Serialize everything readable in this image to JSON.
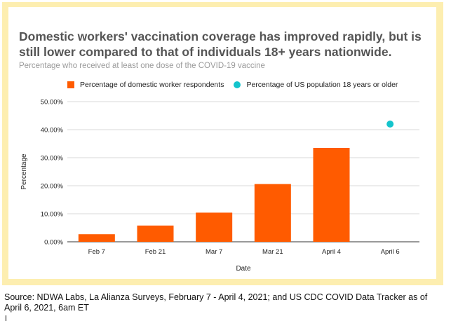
{
  "chart_data": {
    "type": "bar",
    "title": "Domestic workers' vaccination coverage has improved rapidly, but is still lower compared to that of individuals 18+ years nationwide.",
    "subtitle": "Percentage who received at least one dose of the COVID-19 vaccine",
    "xlabel": "Date",
    "ylabel": "Percentage",
    "ylim": [
      0,
      50
    ],
    "yticks": [
      "0.00%",
      "10.00%",
      "20.00%",
      "30.00%",
      "40.00%",
      "50.00%"
    ],
    "grid": true,
    "legend_position": "top",
    "categories": [
      "Feb 7",
      "Feb 21",
      "Mar 7",
      "Mar 21",
      "April 4",
      "April 6"
    ],
    "series": [
      {
        "name": "Percentage of domestic worker respondents",
        "type": "bar",
        "color": "#ff5b00",
        "values": [
          2.7,
          5.8,
          10.4,
          20.6,
          33.5,
          null
        ]
      },
      {
        "name": "Percentage of US population 18 years or older",
        "type": "scatter",
        "color": "#14c4cc",
        "values": [
          null,
          null,
          null,
          null,
          null,
          42.0
        ]
      }
    ]
  },
  "source": "Source: NDWA Labs, La Alianza Surveys, February 7 - April 4, 2021; and US CDC COVID Data Tracker as of April 6, 2021, 6am ET"
}
